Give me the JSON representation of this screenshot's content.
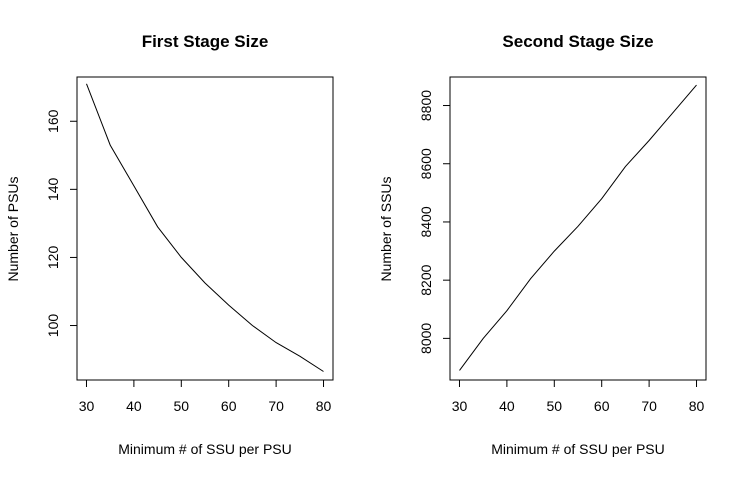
{
  "chart_data": [
    {
      "type": "line",
      "title": "First Stage Size",
      "xlabel": "Minimum # of SSU per PSU",
      "ylabel": "Number of PSUs",
      "x": [
        30,
        35,
        40,
        45,
        50,
        55,
        60,
        65,
        70,
        75,
        80
      ],
      "series": [
        {
          "values": [
            171,
            153,
            141,
            129,
            120,
            112.5,
            106,
            100,
            95,
            91,
            86.5
          ]
        }
      ],
      "xlim": [
        28,
        82
      ],
      "ylim": [
        84,
        173
      ],
      "xticks": [
        30,
        40,
        50,
        60,
        70,
        80
      ],
      "yticks": [
        100,
        120,
        140,
        160
      ],
      "grid": false
    },
    {
      "type": "line",
      "title": "Second Stage Size",
      "xlabel": "Minimum # of SSU per PSU",
      "ylabel": "Number of SSUs",
      "x": [
        30,
        35,
        40,
        45,
        50,
        55,
        60,
        65,
        70,
        75,
        80
      ],
      "series": [
        {
          "values": [
            7890,
            8000,
            8095,
            8205,
            8300,
            8385,
            8480,
            8590,
            8680,
            8775,
            8870
          ]
        }
      ],
      "xlim": [
        28,
        82
      ],
      "ylim": [
        7857,
        8898
      ],
      "xticks": [
        30,
        40,
        50,
        60,
        70,
        80
      ],
      "yticks": [
        8000,
        8200,
        8400,
        8600,
        8800
      ],
      "grid": false
    }
  ]
}
